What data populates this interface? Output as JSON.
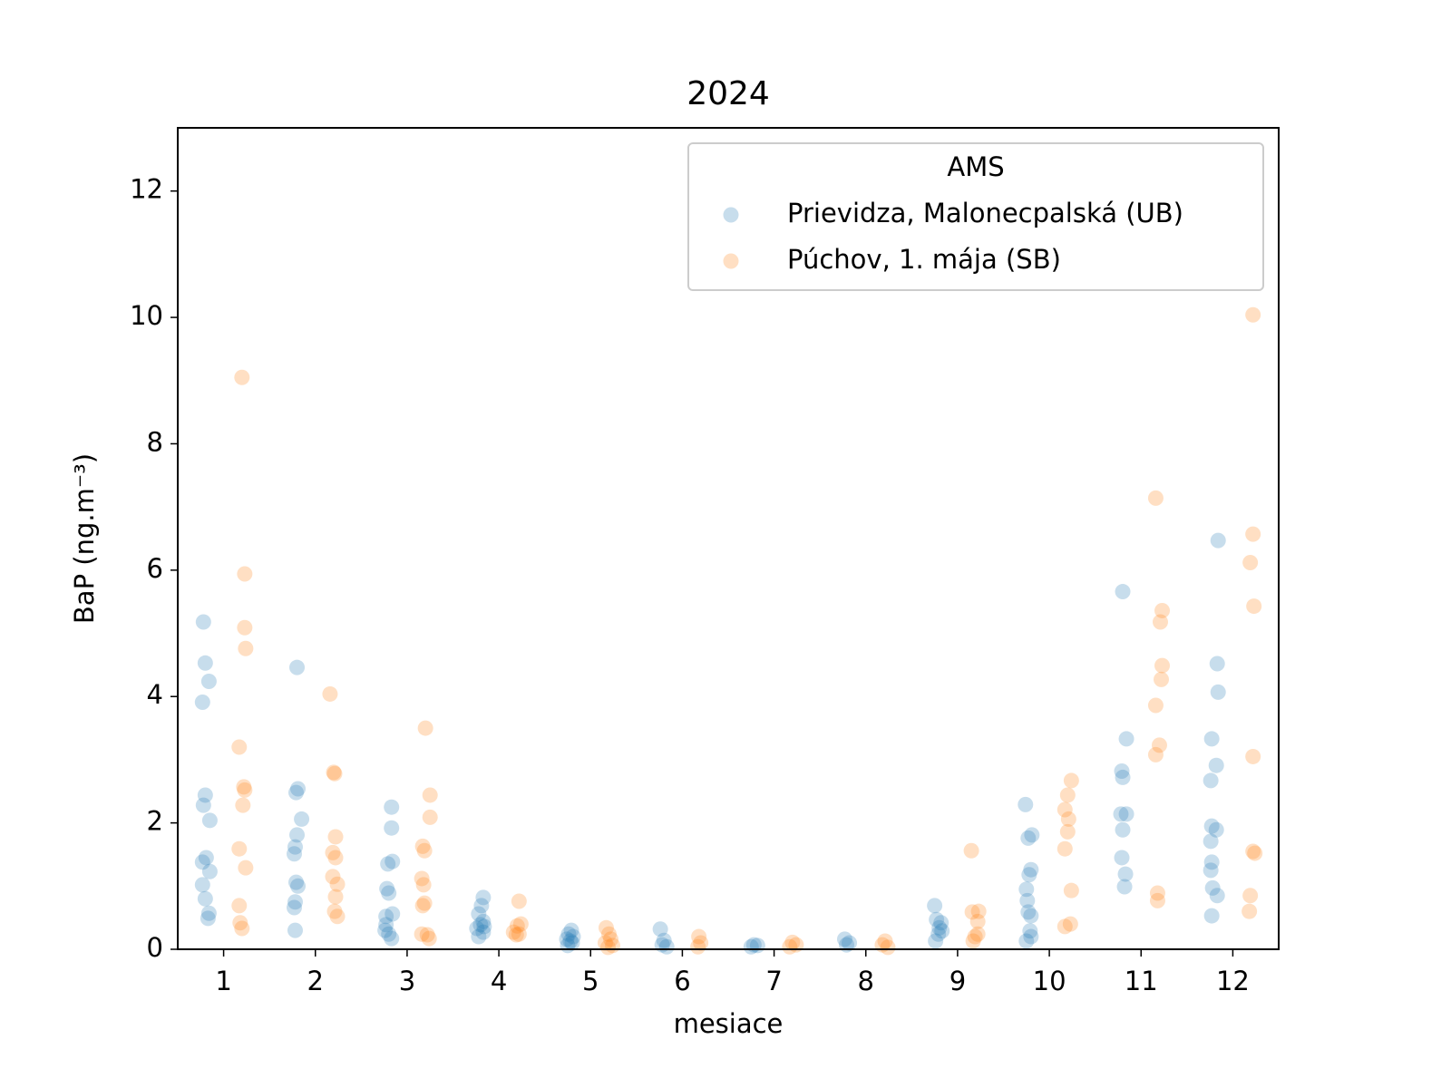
{
  "chart_data": {
    "type": "scatter",
    "title": "2024",
    "xlabel": "mesiace",
    "ylabel": "BaP   (ng.m⁻³)",
    "xlim": [
      0.5,
      12.5
    ],
    "ylim": [
      0,
      13
    ],
    "xticks": [
      1,
      2,
      3,
      4,
      5,
      6,
      7,
      8,
      9,
      10,
      11,
      12
    ],
    "yticks": [
      0,
      2,
      4,
      6,
      8,
      10,
      12
    ],
    "legend_title": "AMS",
    "legend_position": "upper right",
    "alpha": 0.25,
    "series": [
      {
        "name": "Prievidza, Malonecpalská (UB)",
        "color": "#1f77b4",
        "x": [
          0.78,
          0.8,
          0.84,
          0.77,
          0.8,
          0.78,
          0.85,
          0.81,
          0.77,
          0.85,
          0.77,
          0.8,
          0.84,
          0.83,
          1.8,
          1.81,
          1.79,
          1.85,
          1.8,
          1.78,
          1.77,
          1.79,
          1.81,
          1.78,
          1.77,
          1.78,
          2.83,
          2.83,
          2.84,
          2.79,
          2.78,
          2.8,
          2.84,
          2.77,
          2.77,
          2.76,
          2.8,
          2.83,
          3.83,
          3.81,
          3.78,
          3.83,
          3.8,
          3.84,
          3.76,
          3.83,
          3.78,
          4.79,
          4.76,
          4.81,
          4.74,
          4.78,
          4.8,
          4.75,
          5.76,
          5.8,
          5.78,
          5.83,
          6.78,
          6.82,
          6.75,
          7.77,
          7.82,
          7.79,
          8.75,
          8.77,
          8.82,
          8.8,
          8.83,
          8.79,
          8.76,
          9.74,
          9.77,
          9.81,
          9.8,
          9.78,
          9.75,
          9.76,
          9.77,
          9.8,
          9.79,
          9.8,
          9.75,
          10.8,
          10.84,
          10.79,
          10.8,
          10.78,
          10.84,
          10.8,
          10.79,
          10.83,
          10.82,
          11.84,
          11.83,
          11.84,
          11.77,
          11.82,
          11.76,
          11.77,
          11.82,
          11.76,
          11.77,
          11.76,
          11.78,
          11.83,
          11.77
        ],
        "values": [
          5.18,
          4.53,
          4.24,
          3.91,
          2.44,
          2.28,
          2.04,
          1.45,
          1.38,
          1.23,
          1.02,
          0.8,
          0.57,
          0.49,
          4.46,
          2.54,
          2.48,
          2.06,
          1.81,
          1.62,
          1.51,
          1.06,
          1.0,
          0.75,
          0.66,
          0.3,
          2.25,
          1.92,
          1.39,
          1.35,
          0.96,
          0.89,
          0.56,
          0.52,
          0.39,
          0.3,
          0.24,
          0.17,
          0.82,
          0.69,
          0.56,
          0.44,
          0.39,
          0.36,
          0.33,
          0.27,
          0.2,
          0.3,
          0.24,
          0.2,
          0.16,
          0.13,
          0.1,
          0.06,
          0.32,
          0.14,
          0.07,
          0.04,
          0.07,
          0.06,
          0.04,
          0.16,
          0.1,
          0.07,
          0.69,
          0.47,
          0.42,
          0.34,
          0.29,
          0.24,
          0.13,
          2.29,
          1.76,
          1.81,
          1.26,
          1.18,
          0.95,
          0.77,
          0.59,
          0.53,
          0.29,
          0.2,
          0.13,
          5.66,
          3.33,
          2.82,
          2.72,
          2.14,
          2.14,
          1.89,
          1.45,
          1.19,
          0.99,
          6.47,
          4.52,
          4.07,
          3.33,
          2.91,
          2.67,
          1.95,
          1.89,
          1.71,
          1.38,
          1.25,
          0.97,
          0.85,
          0.53
        ]
      },
      {
        "name": "Púchov, 1. mája (SB)",
        "color": "#ff7f0e",
        "x": [
          1.2,
          1.23,
          1.23,
          1.24,
          1.17,
          1.22,
          1.23,
          1.21,
          1.17,
          1.24,
          1.17,
          1.18,
          1.2,
          2.16,
          2.2,
          2.21,
          2.22,
          2.19,
          2.22,
          2.19,
          2.24,
          2.22,
          2.21,
          2.24,
          3.2,
          3.25,
          3.25,
          3.17,
          3.19,
          3.16,
          3.18,
          3.19,
          3.17,
          3.16,
          3.22,
          3.24,
          4.22,
          4.24,
          4.2,
          4.16,
          4.22,
          4.19,
          5.17,
          5.2,
          5.22,
          5.16,
          5.24,
          5.19,
          6.18,
          6.2,
          6.17,
          7.2,
          7.24,
          7.17,
          8.21,
          8.18,
          8.24,
          9.15,
          9.16,
          9.23,
          9.22,
          9.22,
          9.19,
          9.17,
          10.24,
          10.2,
          10.17,
          10.21,
          10.2,
          10.17,
          10.24,
          10.23,
          10.17,
          11.16,
          11.23,
          11.21,
          11.23,
          11.22,
          11.16,
          11.2,
          11.16,
          11.18,
          11.18,
          12.22,
          12.22,
          12.19,
          12.23,
          12.22,
          12.22,
          12.24,
          12.19,
          12.18
        ],
        "values": [
          9.05,
          5.94,
          5.09,
          4.76,
          3.2,
          2.57,
          2.52,
          2.28,
          1.59,
          1.29,
          0.69,
          0.42,
          0.33,
          4.04,
          2.8,
          2.78,
          1.78,
          1.53,
          1.45,
          1.15,
          1.03,
          0.83,
          0.6,
          0.52,
          3.5,
          2.44,
          2.09,
          1.63,
          1.56,
          1.12,
          1.02,
          0.73,
          0.69,
          0.24,
          0.23,
          0.17,
          0.76,
          0.4,
          0.37,
          0.27,
          0.24,
          0.23,
          0.34,
          0.24,
          0.16,
          0.1,
          0.06,
          0.03,
          0.2,
          0.1,
          0.04,
          0.11,
          0.07,
          0.04,
          0.13,
          0.07,
          0.03,
          1.56,
          0.59,
          0.6,
          0.44,
          0.24,
          0.2,
          0.13,
          2.67,
          2.44,
          2.21,
          2.06,
          1.86,
          1.59,
          0.93,
          0.4,
          0.36,
          7.14,
          5.36,
          5.18,
          4.49,
          4.27,
          3.86,
          3.23,
          3.08,
          0.89,
          0.77,
          10.04,
          6.57,
          6.12,
          5.43,
          3.05,
          1.55,
          1.52,
          0.85,
          0.6
        ]
      }
    ]
  }
}
